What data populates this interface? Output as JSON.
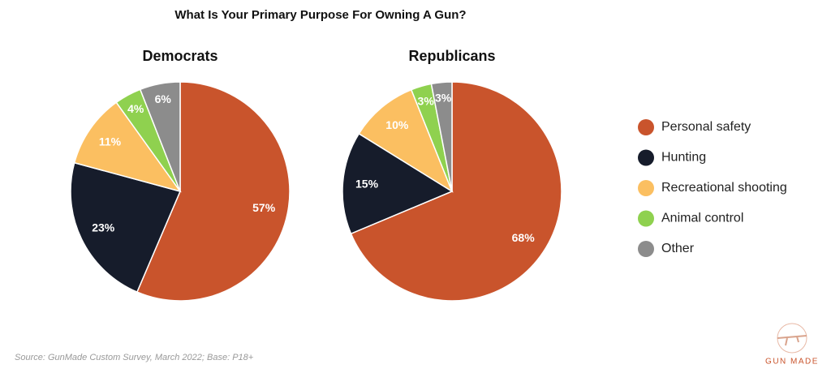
{
  "title": "What Is Your Primary Purpose For Owning A Gun?",
  "source": "Source: GunMade Custom Survey, March 2022; Base: P18+",
  "logo": "GUN MADE",
  "chart_data": [
    {
      "type": "pie",
      "title": "Democrats",
      "categories": [
        "Personal safety",
        "Hunting",
        "Recreational shooting",
        "Animal control",
        "Other"
      ],
      "values": [
        57,
        23,
        11,
        4,
        6
      ],
      "value_labels": [
        "57%",
        "23%",
        "11%",
        "4%",
        "6%"
      ],
      "colors": [
        "#c9542c",
        "#161c2b",
        "#fbbf61",
        "#8fd14f",
        "#8c8c8c"
      ]
    },
    {
      "type": "pie",
      "title": "Republicans",
      "categories": [
        "Personal safety",
        "Hunting",
        "Recreational shooting",
        "Animal control",
        "Other"
      ],
      "values": [
        68,
        15,
        10,
        3,
        3
      ],
      "value_labels": [
        "68%",
        "15%",
        "10%",
        "3%",
        "3%"
      ],
      "colors": [
        "#c9542c",
        "#161c2b",
        "#fbbf61",
        "#8fd14f",
        "#8c8c8c"
      ]
    }
  ]
}
